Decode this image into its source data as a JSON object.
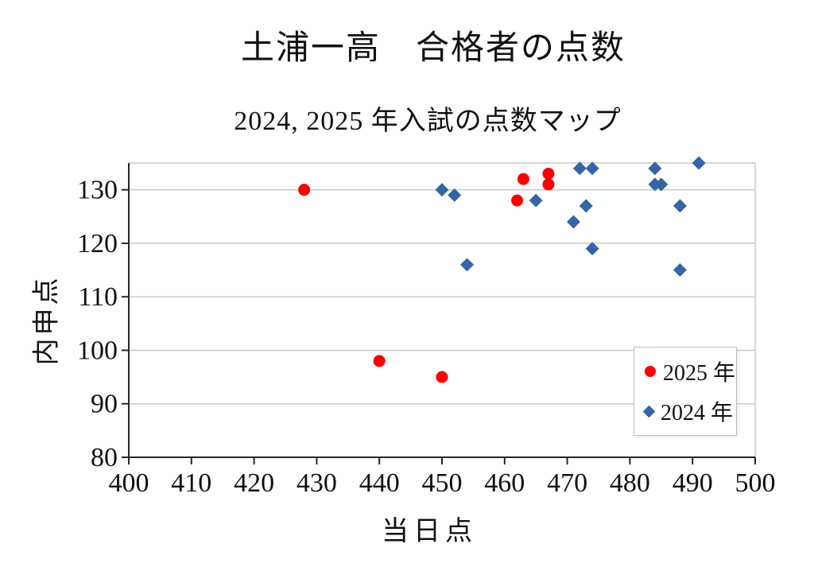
{
  "title": "土浦一高　合格者の点数",
  "subtitle": "2024, 2025 年入試の点数マップ",
  "chart_data": {
    "type": "scatter",
    "title": "土浦一高　合格者の点数",
    "subtitle": "2024, 2025 年入試の点数マップ",
    "xlabel": "当日点",
    "ylabel": "内申点",
    "xlim": [
      400,
      500
    ],
    "ylim": [
      80,
      135
    ],
    "x_ticks": [
      400,
      410,
      420,
      430,
      440,
      450,
      460,
      470,
      480,
      490,
      500
    ],
    "y_ticks": [
      80,
      90,
      100,
      110,
      120,
      130
    ],
    "grid": "horizontal-only",
    "legend_position": "inside-bottom-right",
    "series": [
      {
        "name": "2025 年",
        "marker": "circle",
        "color": "#ff0000",
        "points": [
          [
            428,
            130
          ],
          [
            440,
            98
          ],
          [
            450,
            95
          ],
          [
            462,
            128
          ],
          [
            463,
            132
          ],
          [
            467,
            131
          ],
          [
            467,
            133
          ]
        ]
      },
      {
        "name": "2024 年",
        "marker": "diamond",
        "color": "#3465a4",
        "points": [
          [
            450,
            130
          ],
          [
            452,
            129
          ],
          [
            454,
            116
          ],
          [
            465,
            128
          ],
          [
            471,
            124
          ],
          [
            472,
            134
          ],
          [
            473,
            127
          ],
          [
            474,
            119
          ],
          [
            474,
            134
          ],
          [
            484,
            131
          ],
          [
            484,
            134
          ],
          [
            485,
            131
          ],
          [
            488,
            115
          ],
          [
            488,
            127
          ],
          [
            491,
            135
          ]
        ]
      }
    ]
  },
  "legend": {
    "items": [
      {
        "label": "2025 年",
        "marker": "red-circle",
        "color": "#ff0000"
      },
      {
        "label": "2024 年",
        "marker": "blue-diamond",
        "color": "#3465a4"
      }
    ]
  },
  "colors": {
    "series_2025": "#ff0000",
    "series_2024": "#3465a4",
    "gridline": "#c9c9c9",
    "axis": "#262626",
    "text": "#111111",
    "legend_border": "#bdbdbd"
  }
}
